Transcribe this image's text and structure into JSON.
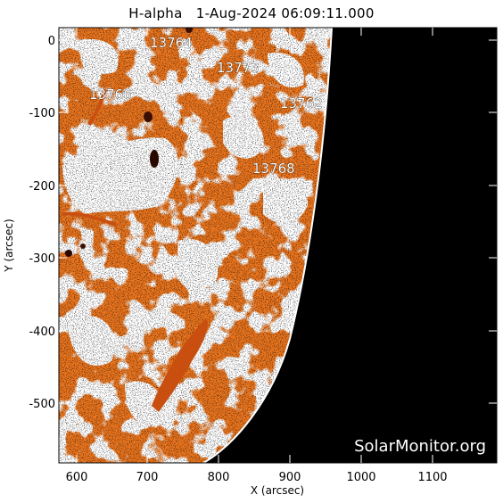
{
  "header": {
    "title": "H-alpha   1-Aug-2024 06:09:11.000"
  },
  "axes": {
    "xlabel": "X (arcsec)",
    "ylabel": "Y (arcsec)",
    "xticks": [
      "600",
      "700",
      "800",
      "900",
      "1000",
      "1100"
    ],
    "yticks": [
      "0",
      "-100",
      "-200",
      "-300",
      "-400",
      "-500"
    ]
  },
  "regions": [
    {
      "label": "13764"
    },
    {
      "label": "13773"
    },
    {
      "label": "13766"
    },
    {
      "label": "13762"
    },
    {
      "label": "13768"
    }
  ],
  "watermark": "SolarMonitor.org",
  "colors": {
    "sky": "#000000",
    "disk_base": "#e8741e",
    "plage": "#ffffff",
    "filament": "#9a3a08",
    "frame": "#000000"
  }
}
